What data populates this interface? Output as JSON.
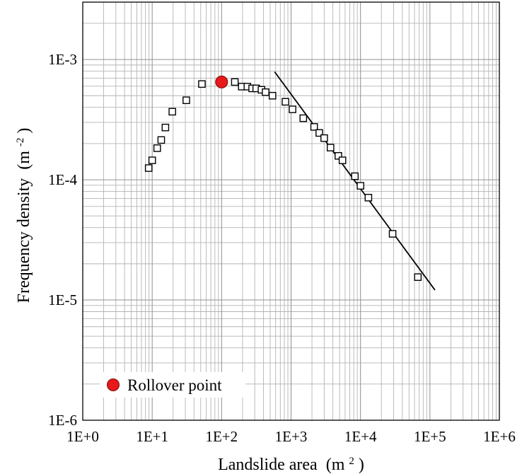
{
  "chart_data": {
    "type": "scatter",
    "xlabel": "Landslide area",
    "xlabel_unit": "(m",
    "xlabel_sup": "2",
    "xlabel_close": ")",
    "ylabel": "Frequency density",
    "ylabel_unit": "(m",
    "ylabel_sup": "-2",
    "ylabel_close": ")",
    "x_scale": "log",
    "y_scale": "log",
    "xlim": [
      1,
      1000000
    ],
    "ylim": [
      1e-06,
      0.003
    ],
    "grid": true,
    "x_ticks": [
      {
        "value": 1,
        "label": "1E+0"
      },
      {
        "value": 10,
        "label": "1E+1"
      },
      {
        "value": 100,
        "label": "1E+2"
      },
      {
        "value": 1000,
        "label": "1E+3"
      },
      {
        "value": 10000,
        "label": "1E+4"
      },
      {
        "value": 100000,
        "label": "1E+5"
      },
      {
        "value": 1000000,
        "label": "1E+6"
      }
    ],
    "y_ticks": [
      {
        "value": 1e-06,
        "label": "1E-6"
      },
      {
        "value": 1e-05,
        "label": "1E-5"
      },
      {
        "value": 0.0001,
        "label": "1E-4"
      },
      {
        "value": 0.001,
        "label": "1E-3"
      }
    ],
    "series": [
      {
        "marker": "open-square",
        "points": [
          {
            "x": 8.9,
            "y": 0.000125
          },
          {
            "x": 10,
            "y": 0.000145
          },
          {
            "x": 11.8,
            "y": 0.000183
          },
          {
            "x": 13.5,
            "y": 0.000214
          },
          {
            "x": 15.5,
            "y": 0.000272
          },
          {
            "x": 19.5,
            "y": 0.000368
          },
          {
            "x": 31,
            "y": 0.000458
          },
          {
            "x": 52,
            "y": 0.000625
          },
          {
            "x": 155,
            "y": 0.00065
          },
          {
            "x": 195,
            "y": 0.000595
          },
          {
            "x": 235,
            "y": 0.000595
          },
          {
            "x": 275,
            "y": 0.000575
          },
          {
            "x": 315,
            "y": 0.000575
          },
          {
            "x": 375,
            "y": 0.00056
          },
          {
            "x": 430,
            "y": 0.000535
          },
          {
            "x": 540,
            "y": 0.0005
          },
          {
            "x": 830,
            "y": 0.000445
          },
          {
            "x": 1050,
            "y": 0.000385
          },
          {
            "x": 1500,
            "y": 0.000325
          },
          {
            "x": 2150,
            "y": 0.000275
          },
          {
            "x": 2550,
            "y": 0.000245
          },
          {
            "x": 3000,
            "y": 0.000222
          },
          {
            "x": 3700,
            "y": 0.000185
          },
          {
            "x": 4800,
            "y": 0.000158
          },
          {
            "x": 5500,
            "y": 0.000145
          },
          {
            "x": 8300,
            "y": 0.000107
          },
          {
            "x": 10000,
            "y": 8.9e-05
          },
          {
            "x": 13000,
            "y": 7.1e-05
          },
          {
            "x": 29000,
            "y": 3.55e-05
          },
          {
            "x": 67000,
            "y": 1.55e-05
          }
        ]
      },
      {
        "marker": "filled-circle",
        "color": "#e8191a",
        "points": [
          {
            "x": 100,
            "y": 0.00065
          }
        ]
      }
    ],
    "fit_line": {
      "x": [
        580,
        118000
      ],
      "y": [
        0.00079,
        1.21e-05
      ]
    },
    "legend": {
      "position": "bottom-left",
      "label": "Rollover point"
    }
  }
}
